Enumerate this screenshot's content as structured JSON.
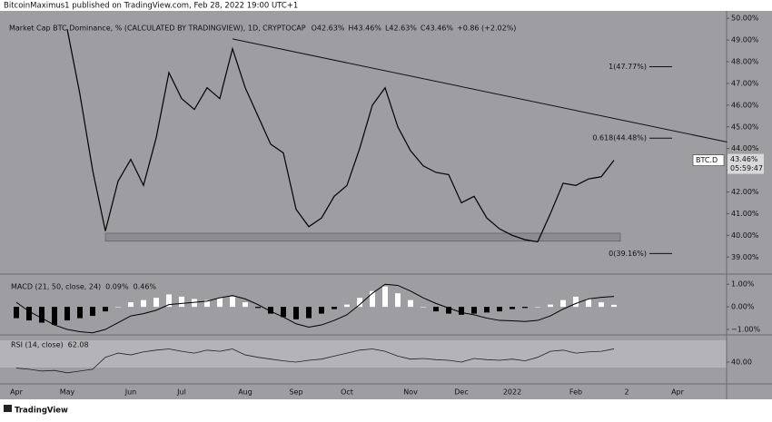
{
  "chart_data": {
    "type": "line",
    "publisher_line": "BitcoinMaximus1 published on TradingView.com, Feb 28, 2022 19:00 UTC+1",
    "title": "Market Cap BTC Dominance, % (CALCULATED BY TRADINGVIEW), 1D, CRYPTOCAP",
    "ohlc_labels": [
      "O42.63%",
      "H43.46%",
      "L42.63%",
      "C43.46%",
      "+0.86 (+2.02%)"
    ],
    "categories": [
      "Apr",
      null,
      null,
      null,
      "May",
      null,
      null,
      null,
      null,
      "Jun",
      null,
      null,
      null,
      "Jul",
      null,
      null,
      null,
      null,
      "Aug",
      null,
      null,
      null,
      "Sep",
      null,
      null,
      null,
      "Oct",
      null,
      null,
      null,
      null,
      "Nov",
      null,
      null,
      null,
      "Dec",
      null,
      null,
      null,
      "2022",
      null,
      null,
      null,
      null,
      "Feb",
      null,
      null,
      null,
      "2",
      null,
      null,
      null,
      "Apr"
    ],
    "series": [
      {
        "name": "BTC.D",
        "color": "#000000",
        "values": [
          null,
          null,
          null,
          null,
          49.5,
          46.5,
          43,
          40.2,
          42.5,
          43.5,
          42.3,
          44.5,
          47.5,
          46.3,
          45.8,
          46.8,
          46.3,
          48.6,
          46.8,
          45.5,
          44.2,
          43.8,
          41.2,
          40.4,
          40.8,
          41.8,
          42.3,
          44,
          46,
          46.8,
          45,
          43.9,
          43.2,
          42.9,
          42.8,
          41.5,
          41.8,
          40.8,
          40.3,
          40.0,
          39.8,
          39.7,
          41.0,
          42.4,
          42.3,
          42.6,
          42.7,
          43.46,
          null,
          null,
          null,
          null,
          null
        ]
      }
    ],
    "ylim": [
      38.3,
      50.3
    ],
    "yticks": [
      {
        "value": 39,
        "label": "39.00%"
      },
      {
        "value": 40,
        "label": "40.00%"
      },
      {
        "value": 41,
        "label": "41.00%"
      },
      {
        "value": 42,
        "label": "42.00%"
      },
      {
        "value": 43,
        "label": "43.00%"
      },
      {
        "value": 44,
        "label": "44.00%"
      },
      {
        "value": 45,
        "label": "45.00%"
      },
      {
        "value": 46,
        "label": "46.00%"
      },
      {
        "value": 47,
        "label": "47.00%"
      },
      {
        "value": 48,
        "label": "48.00%"
      },
      {
        "value": 49,
        "label": "49.00%"
      },
      {
        "value": 50,
        "label": "50.00%"
      }
    ],
    "fib_levels": [
      {
        "value": 47.77,
        "label": "1(47.77%)"
      },
      {
        "value": 44.48,
        "label": "0.618(44.48%)"
      },
      {
        "value": 39.16,
        "label": "0(39.16%)"
      }
    ],
    "trendline": {
      "from": [
        17,
        49.05
      ],
      "to": [
        55.9,
        44.3
      ]
    },
    "support_zone": {
      "from": 7,
      "to": 47.5,
      "low": 39.73,
      "high": 40.1
    },
    "last_price": {
      "name": "BTC.D",
      "value": 43.46,
      "value_label": "43.46%",
      "countdown": "05:59:47"
    },
    "macd": {
      "label": "MACD (21, 50, close, 24)",
      "value_labels": [
        "0.09%",
        "0.46%"
      ],
      "ylim": [
        -1.2,
        1.33
      ],
      "yticks": [
        {
          "value": 1,
          "label": "1.00%"
        },
        {
          "value": 0,
          "label": "0.00%"
        },
        {
          "value": -1,
          "label": "−1.00%"
        }
      ],
      "line_color": "#000000",
      "positive_color": "#ffffff",
      "negative_color": "#000000",
      "line": [
        0.2,
        -0.2,
        -0.5,
        -0.8,
        -1.0,
        -1.1,
        -1.15,
        -1.0,
        -0.7,
        -0.4,
        -0.3,
        -0.15,
        0.1,
        0.15,
        0.2,
        0.25,
        0.4,
        0.5,
        0.35,
        0.1,
        -0.2,
        -0.45,
        -0.75,
        -0.9,
        -0.8,
        -0.6,
        -0.35,
        0.1,
        0.6,
        1.0,
        0.95,
        0.7,
        0.4,
        0.15,
        -0.05,
        -0.25,
        -0.35,
        -0.5,
        -0.6,
        -0.62,
        -0.65,
        -0.6,
        -0.4,
        -0.1,
        0.15,
        0.35,
        0.42,
        0.46,
        null,
        null,
        null,
        null,
        null
      ],
      "histogram": [
        -0.5,
        -0.6,
        -0.7,
        -0.8,
        -0.6,
        -0.5,
        -0.4,
        -0.2,
        0,
        0.2,
        0.3,
        0.4,
        0.55,
        0.45,
        0.35,
        0.3,
        0.4,
        0.45,
        0.2,
        -0.05,
        -0.3,
        -0.45,
        -0.55,
        -0.5,
        -0.3,
        -0.1,
        0.1,
        0.4,
        0.7,
        0.9,
        0.6,
        0.3,
        0,
        -0.2,
        -0.3,
        -0.35,
        -0.3,
        -0.25,
        -0.2,
        -0.1,
        -0.05,
        0,
        0.1,
        0.3,
        0.45,
        0.35,
        0.2,
        0.09,
        null,
        null,
        null,
        null,
        null
      ]
    },
    "rsi": {
      "label": "RSI (14, close)",
      "value_label": "62.08",
      "ylim": [
        5,
        84
      ],
      "yticks": [
        {
          "value": 40,
          "label": "40.00"
        }
      ],
      "color": "#222222",
      "values": [
        30,
        28,
        25,
        26,
        22,
        25,
        28,
        48,
        55,
        52,
        57,
        60,
        62,
        58,
        55,
        60,
        58,
        62,
        52,
        48,
        45,
        42,
        40,
        43,
        45,
        50,
        55,
        60,
        62,
        58,
        50,
        45,
        46,
        44,
        43,
        40,
        46,
        44,
        43,
        45,
        42,
        48,
        58,
        60,
        55,
        57,
        58,
        62.08,
        null,
        null,
        null,
        null,
        null
      ]
    },
    "footer": "TradingView"
  }
}
